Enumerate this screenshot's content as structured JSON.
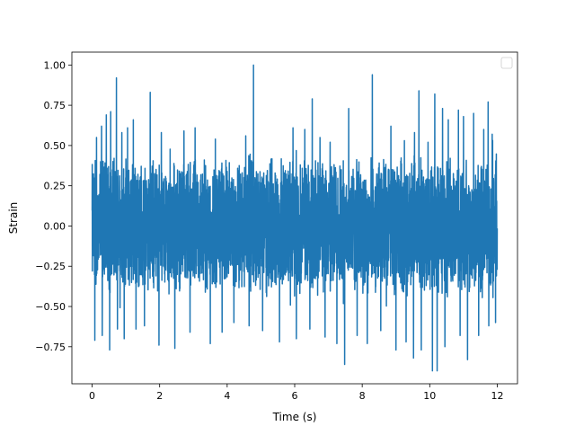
{
  "chart_data": {
    "type": "line",
    "title": "",
    "xlabel": "Time (s)",
    "ylabel": "Strain",
    "xlim": [
      -0.6,
      12.6
    ],
    "ylim": [
      -0.98,
      1.08
    ],
    "x_ticks": [
      0,
      2,
      4,
      6,
      8,
      10,
      12
    ],
    "x_tick_labels": [
      "0",
      "2",
      "4",
      "6",
      "8",
      "10",
      "12"
    ],
    "y_ticks": [
      -0.75,
      -0.5,
      -0.25,
      0.0,
      0.25,
      0.5,
      0.75,
      1.0
    ],
    "y_tick_labels": [
      "−0.75",
      "−0.50",
      "−0.25",
      "0.00",
      "0.25",
      "0.50",
      "0.75",
      "1.00"
    ],
    "grid": false,
    "legend": {
      "placement": "top-right",
      "entries": []
    },
    "series": [
      {
        "color": "#1f77b4",
        "x_start": 0,
        "x_end": 12,
        "typical_range": [
          -0.45,
          0.45
        ],
        "peaks": [
          {
            "x": 0.13,
            "y": 0.55
          },
          {
            "x": 0.28,
            "y": 0.62
          },
          {
            "x": 0.42,
            "y": 0.69
          },
          {
            "x": 0.55,
            "y": 0.71
          },
          {
            "x": 0.72,
            "y": 0.92
          },
          {
            "x": 0.88,
            "y": 0.58
          },
          {
            "x": 1.05,
            "y": 0.61
          },
          {
            "x": 1.22,
            "y": 0.66
          },
          {
            "x": 1.55,
            "y": 0.79
          },
          {
            "x": 1.72,
            "y": 0.83
          },
          {
            "x": 2.05,
            "y": 0.58
          },
          {
            "x": 2.45,
            "y": 0.58
          },
          {
            "x": 2.72,
            "y": 0.59
          },
          {
            "x": 3.05,
            "y": 0.61
          },
          {
            "x": 3.65,
            "y": 0.54
          },
          {
            "x": 3.85,
            "y": 0.72
          },
          {
            "x": 4.55,
            "y": 0.56
          },
          {
            "x": 4.78,
            "y": 1.0
          },
          {
            "x": 5.05,
            "y": 0.58
          },
          {
            "x": 5.55,
            "y": 0.64
          },
          {
            "x": 5.95,
            "y": 0.61
          },
          {
            "x": 6.3,
            "y": 0.6
          },
          {
            "x": 6.52,
            "y": 0.79
          },
          {
            "x": 6.75,
            "y": 0.55
          },
          {
            "x": 7.05,
            "y": 0.52
          },
          {
            "x": 7.6,
            "y": 0.73
          },
          {
            "x": 7.85,
            "y": 0.56
          },
          {
            "x": 8.15,
            "y": 0.63
          },
          {
            "x": 8.3,
            "y": 0.94
          },
          {
            "x": 8.55,
            "y": 0.6
          },
          {
            "x": 8.85,
            "y": 0.62
          },
          {
            "x": 9.25,
            "y": 0.53
          },
          {
            "x": 9.55,
            "y": 0.58
          },
          {
            "x": 9.68,
            "y": 0.84
          },
          {
            "x": 9.95,
            "y": 0.52
          },
          {
            "x": 10.15,
            "y": 0.82
          },
          {
            "x": 10.38,
            "y": 0.73
          },
          {
            "x": 10.55,
            "y": 0.66
          },
          {
            "x": 10.85,
            "y": 0.72
          },
          {
            "x": 11.0,
            "y": 0.68
          },
          {
            "x": 11.3,
            "y": 0.7
          },
          {
            "x": 11.6,
            "y": 0.6
          },
          {
            "x": 11.73,
            "y": 0.77
          },
          {
            "x": 11.85,
            "y": 0.57
          }
        ],
        "troughs": [
          {
            "x": 0.08,
            "y": -0.71
          },
          {
            "x": 0.3,
            "y": -0.68
          },
          {
            "x": 0.52,
            "y": -0.77
          },
          {
            "x": 0.75,
            "y": -0.64
          },
          {
            "x": 0.95,
            "y": -0.7
          },
          {
            "x": 1.3,
            "y": -0.64
          },
          {
            "x": 1.55,
            "y": -0.62
          },
          {
            "x": 1.98,
            "y": -0.74
          },
          {
            "x": 2.45,
            "y": -0.76
          },
          {
            "x": 2.9,
            "y": -0.66
          },
          {
            "x": 3.5,
            "y": -0.73
          },
          {
            "x": 3.85,
            "y": -0.66
          },
          {
            "x": 4.2,
            "y": -0.6
          },
          {
            "x": 4.65,
            "y": -0.62
          },
          {
            "x": 5.05,
            "y": -0.65
          },
          {
            "x": 5.55,
            "y": -0.72
          },
          {
            "x": 6.05,
            "y": -0.7
          },
          {
            "x": 6.45,
            "y": -0.64
          },
          {
            "x": 6.9,
            "y": -0.69
          },
          {
            "x": 7.25,
            "y": -0.73
          },
          {
            "x": 7.48,
            "y": -0.86
          },
          {
            "x": 7.85,
            "y": -0.68
          },
          {
            "x": 8.15,
            "y": -0.73
          },
          {
            "x": 8.55,
            "y": -0.65
          },
          {
            "x": 9.0,
            "y": -0.77
          },
          {
            "x": 9.3,
            "y": -0.72
          },
          {
            "x": 9.52,
            "y": -0.82
          },
          {
            "x": 9.75,
            "y": -0.77
          },
          {
            "x": 10.08,
            "y": -0.9
          },
          {
            "x": 10.22,
            "y": -0.9
          },
          {
            "x": 10.45,
            "y": -0.75
          },
          {
            "x": 10.9,
            "y": -0.68
          },
          {
            "x": 11.12,
            "y": -0.83
          },
          {
            "x": 11.45,
            "y": -0.68
          },
          {
            "x": 11.75,
            "y": -0.62
          },
          {
            "x": 11.95,
            "y": -0.6
          }
        ]
      }
    ]
  }
}
